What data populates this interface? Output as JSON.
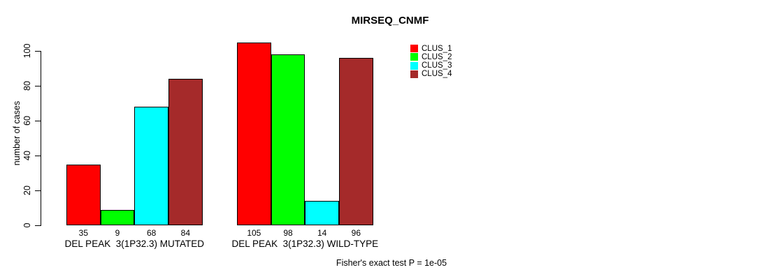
{
  "title": "MIRSEQ_CNMF",
  "chart_data": {
    "type": "bar",
    "title": "MIRSEQ_CNMF",
    "xlabel": "",
    "ylabel": "number of cases",
    "ylim": [
      0,
      100
    ],
    "yticks": [
      0,
      20,
      40,
      60,
      80,
      100
    ],
    "grid": false,
    "legend_position": "right-top",
    "categories": [
      "DEL PEAK  3(1P32.3) MUTATED",
      "DEL PEAK  3(1P32.3) WILD-TYPE"
    ],
    "series": [
      {
        "name": "CLUS_1",
        "color": "#FF0000",
        "values": [
          35,
          105
        ]
      },
      {
        "name": "CLUS_2",
        "color": "#00FF00",
        "values": [
          9,
          98
        ]
      },
      {
        "name": "CLUS_3",
        "color": "#00FFFF",
        "values": [
          68,
          14
        ]
      },
      {
        "name": "CLUS_4",
        "color": "#A52A2A",
        "values": [
          84,
          96
        ]
      }
    ],
    "bar_value_labels": [
      [
        "35",
        "9",
        "68",
        "84"
      ],
      [
        "105",
        "98",
        "14",
        "96"
      ]
    ],
    "annotation": "Fisher's exact test P = 1e-05"
  }
}
